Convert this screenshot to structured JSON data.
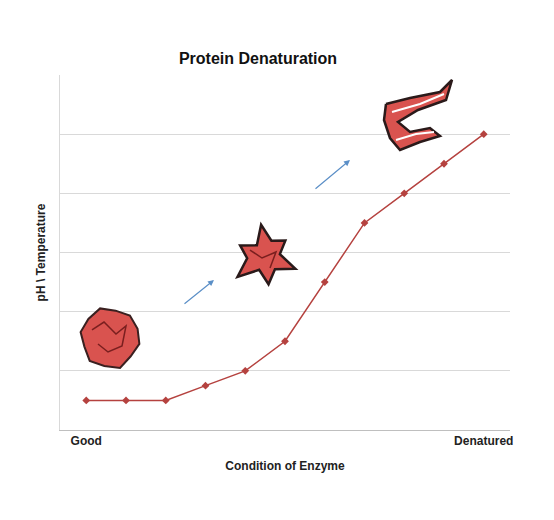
{
  "chart_data": {
    "type": "line",
    "title": "Protein Denaturation",
    "x_label": "Condition of Enzyme",
    "y_label": "pH \\ Temperature",
    "categories": [
      "Good",
      null,
      null,
      null,
      null,
      null,
      null,
      null,
      null,
      null,
      "Denatured"
    ],
    "values": [
      0.5,
      0.5,
      0.5,
      0.75,
      1,
      1.5,
      2.5,
      3.5,
      4,
      4.5,
      5
    ],
    "color": "#b5423f",
    "marker": "diamond",
    "ylim": [
      0,
      6
    ],
    "yticks": [
      0,
      1,
      2,
      3,
      4,
      5,
      6
    ],
    "grid": true,
    "tick_labels": "x"
  }
}
